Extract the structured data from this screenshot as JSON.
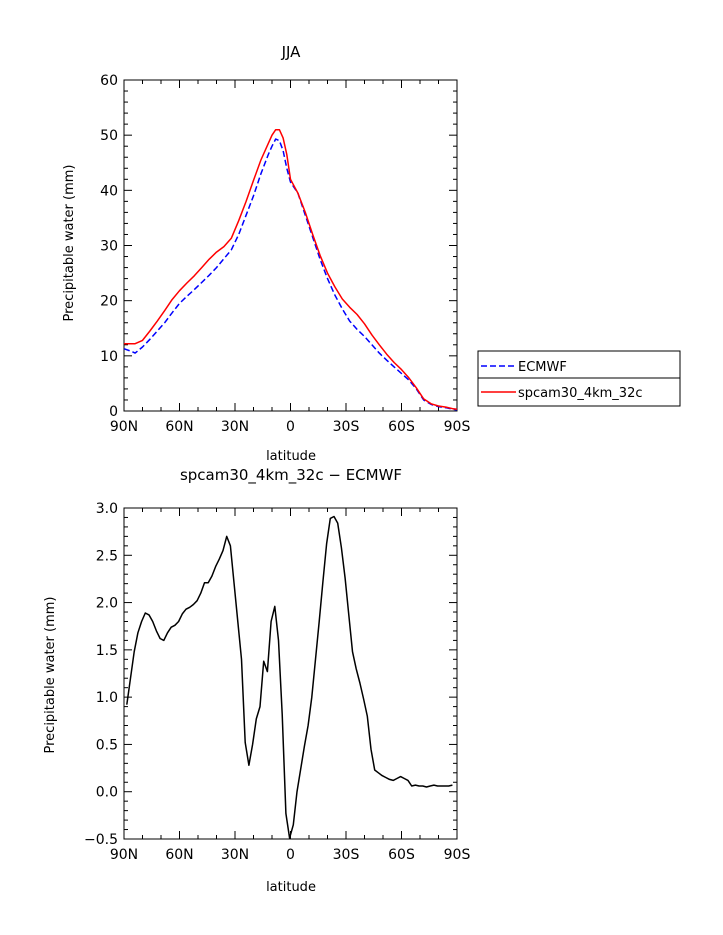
{
  "chart_data": [
    {
      "type": "line",
      "title": "JJA",
      "xlabel": "latitude",
      "ylabel": "Precipitable water (mm)",
      "xlim": [
        90,
        -90
      ],
      "ylim": [
        0,
        60
      ],
      "x_ticks": [
        90,
        60,
        30,
        0,
        -30,
        -60,
        -90
      ],
      "x_tick_labels": [
        "90N",
        "60N",
        "30N",
        "0",
        "30S",
        "60S",
        "90S"
      ],
      "y_ticks": [
        0,
        10,
        20,
        30,
        40,
        50,
        60
      ],
      "y_tick_labels": [
        "0",
        "10",
        "20",
        "30",
        "40",
        "50",
        "60"
      ],
      "legend_position": "right",
      "series": [
        {
          "name": "ECMWF",
          "color": "#0000ff",
          "dash": true,
          "x": [
            90,
            86,
            84,
            80,
            76,
            72,
            68,
            64,
            60,
            56,
            52,
            48,
            44,
            40,
            36,
            32,
            28,
            24,
            20,
            16,
            12,
            10,
            8,
            6,
            4,
            2,
            0,
            -4,
            -8,
            -12,
            -16,
            -20,
            -24,
            -28,
            -32,
            -36,
            -40,
            -44,
            -48,
            -52,
            -56,
            -60,
            -64,
            -68,
            -72,
            -76,
            -80,
            -84,
            -88,
            -90
          ],
          "y": [
            11.3,
            10.8,
            10.5,
            11.6,
            13.0,
            14.5,
            16.0,
            17.8,
            19.5,
            20.8,
            22.0,
            23.3,
            24.6,
            26.0,
            27.6,
            29.2,
            32.0,
            35.5,
            39.0,
            43.0,
            46.5,
            48.0,
            49.3,
            49.0,
            47.2,
            44.0,
            41.5,
            39.5,
            35.5,
            31.5,
            27.5,
            24.0,
            21.0,
            18.5,
            16.3,
            14.8,
            13.5,
            12.0,
            10.5,
            9.2,
            8.0,
            6.8,
            5.6,
            4.0,
            2.0,
            1.2,
            0.8,
            0.6,
            0.3,
            0.2
          ]
        },
        {
          "name": "spcam30_4km_32c",
          "color": "#ff0000",
          "dash": false,
          "x": [
            90,
            86,
            84,
            80,
            76,
            72,
            68,
            64,
            60,
            56,
            52,
            48,
            44,
            40,
            36,
            32,
            28,
            24,
            20,
            16,
            12,
            10,
            8,
            6,
            4,
            2,
            0,
            -4,
            -8,
            -12,
            -16,
            -20,
            -24,
            -28,
            -32,
            -36,
            -40,
            -44,
            -48,
            -52,
            -56,
            -60,
            -64,
            -68,
            -72,
            -76,
            -80,
            -84,
            -88,
            -90
          ],
          "y": [
            12.2,
            12.2,
            12.2,
            12.8,
            14.5,
            16.3,
            18.2,
            20.2,
            21.8,
            23.2,
            24.5,
            26.0,
            27.5,
            28.8,
            29.8,
            31.3,
            34.5,
            38.0,
            41.8,
            45.5,
            48.5,
            50.0,
            51.0,
            51.0,
            49.5,
            46.5,
            42.0,
            39.5,
            36.0,
            32.0,
            28.2,
            25.0,
            22.5,
            20.3,
            18.8,
            17.5,
            15.8,
            13.8,
            12.0,
            10.3,
            8.8,
            7.5,
            6.0,
            4.2,
            2.2,
            1.3,
            0.9,
            0.7,
            0.4,
            0.3
          ]
        }
      ]
    },
    {
      "type": "line",
      "title": "spcam30_4km_32c − ECMWF",
      "xlabel": "latitude",
      "ylabel": "Precipitable water (mm)",
      "xlim": [
        90,
        -90
      ],
      "ylim": [
        -0.5,
        3.0
      ],
      "x_ticks": [
        90,
        60,
        30,
        0,
        -30,
        -60,
        -90
      ],
      "x_tick_labels": [
        "90N",
        "60N",
        "30N",
        "0",
        "30S",
        "60S",
        "90S"
      ],
      "y_ticks": [
        -0.5,
        0.0,
        0.5,
        1.0,
        1.5,
        2.0,
        2.5,
        3.0
      ],
      "y_tick_labels": [
        "−0.5",
        "0.0",
        "0.5",
        "1.0",
        "1.5",
        "2.0",
        "2.5",
        "3.0"
      ],
      "series": [
        {
          "color": "#000000",
          "x": [
            88.5,
            86.5,
            84.5,
            82.5,
            80.5,
            78.5,
            76.5,
            74.5,
            72.5,
            70.5,
            68.5,
            66.5,
            64.5,
            62.5,
            60.5,
            58.5,
            56.5,
            54.5,
            52.5,
            50.5,
            48.5,
            46.5,
            44.5,
            42.5,
            40.5,
            38.5,
            36.5,
            34.5,
            32.5,
            30.5,
            28.5,
            26.5,
            24.5,
            22.5,
            20.5,
            18.5,
            16.5,
            14.5,
            12.5,
            10.5,
            8.5,
            6.5,
            4.5,
            2.5,
            0.5,
            -1.5,
            -3.5,
            -5.5,
            -7.5,
            -9.5,
            -11.5,
            -13.5,
            -15.5,
            -17.5,
            -19.5,
            -21.5,
            -23.5,
            -25.5,
            -27.5,
            -29.5,
            -31.5,
            -33.5,
            -35.5,
            -37.5,
            -39.5,
            -41.5,
            -43.5,
            -45.5,
            -47.5,
            -49.5,
            -51.5,
            -53.5,
            -55.5,
            -57.5,
            -59.5,
            -61.5,
            -63.5,
            -65.5,
            -67.5,
            -69.5,
            -71.5,
            -73.5,
            -75.5,
            -77.5,
            -79.5,
            -81.5,
            -83.5,
            -85.5,
            -87.5
          ],
          "y": [
            0.92,
            1.2,
            1.48,
            1.68,
            1.8,
            1.89,
            1.87,
            1.8,
            1.7,
            1.62,
            1.6,
            1.68,
            1.74,
            1.76,
            1.8,
            1.88,
            1.93,
            1.95,
            1.98,
            2.02,
            2.1,
            2.21,
            2.21,
            2.28,
            2.38,
            2.46,
            2.55,
            2.7,
            2.6,
            2.2,
            1.8,
            1.4,
            0.52,
            0.28,
            0.5,
            0.77,
            0.9,
            1.38,
            1.27,
            1.8,
            1.96,
            1.6,
            0.82,
            -0.23,
            -0.49,
            -0.35,
            0.0,
            0.24,
            0.48,
            0.7,
            1.0,
            1.4,
            1.8,
            2.22,
            2.62,
            2.89,
            2.91,
            2.84,
            2.58,
            2.26,
            1.87,
            1.48,
            1.3,
            1.15,
            0.98,
            0.8,
            0.45,
            0.23,
            0.2,
            0.17,
            0.15,
            0.13,
            0.12,
            0.14,
            0.16,
            0.14,
            0.12,
            0.06,
            0.07,
            0.06,
            0.06,
            0.05,
            0.06,
            0.07,
            0.06,
            0.06,
            0.06,
            0.06,
            0.07
          ]
        }
      ]
    }
  ]
}
